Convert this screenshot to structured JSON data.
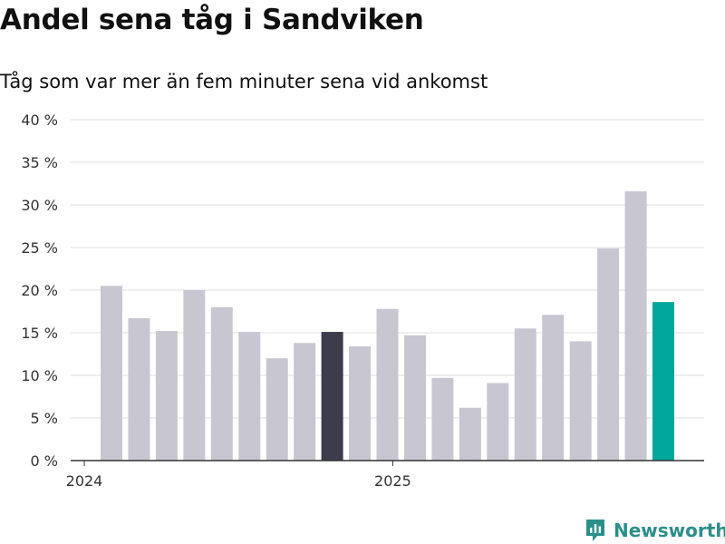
{
  "title": "Andel sena tåg i Sandviken",
  "subtitle": "Tåg som var mer än fem minuter sena vid ankomst",
  "chart_data": {
    "type": "bar",
    "title": "Andel sena tåg i Sandviken",
    "subtitle": "Tåg som var mer än fem minuter sena vid ankomst",
    "xlabel": "",
    "ylabel": "",
    "ylim": [
      0,
      40
    ],
    "y_ticks": [
      0,
      5,
      10,
      15,
      20,
      25,
      30,
      35,
      40
    ],
    "y_tick_labels": [
      "0 %",
      "5 %",
      "10 %",
      "15 %",
      "20 %",
      "25 %",
      "30 %",
      "35 %",
      "40 %"
    ],
    "x_tick_labels": [
      {
        "label": "2024",
        "index": 0
      },
      {
        "label": "2025",
        "index": 12
      }
    ],
    "values": [
      20.5,
      16.7,
      15.2,
      20.0,
      18.0,
      15.1,
      12.0,
      13.8,
      15.1,
      13.4,
      17.8,
      14.7,
      9.7,
      6.2,
      9.1,
      15.5,
      17.1,
      14.0,
      24.9,
      31.6,
      18.6
    ],
    "highlight": [
      {
        "index": 8,
        "color": "#3d3c4b"
      },
      {
        "index": 20,
        "color": "#00a79a"
      }
    ],
    "colors": {
      "bar": "#c8c6d1",
      "grid": "#dddddd",
      "axis": "#333333"
    }
  },
  "brand": {
    "name": "Newsworthy",
    "color": "#2a8f8a",
    "icon": "newsworthy-logo-icon"
  }
}
